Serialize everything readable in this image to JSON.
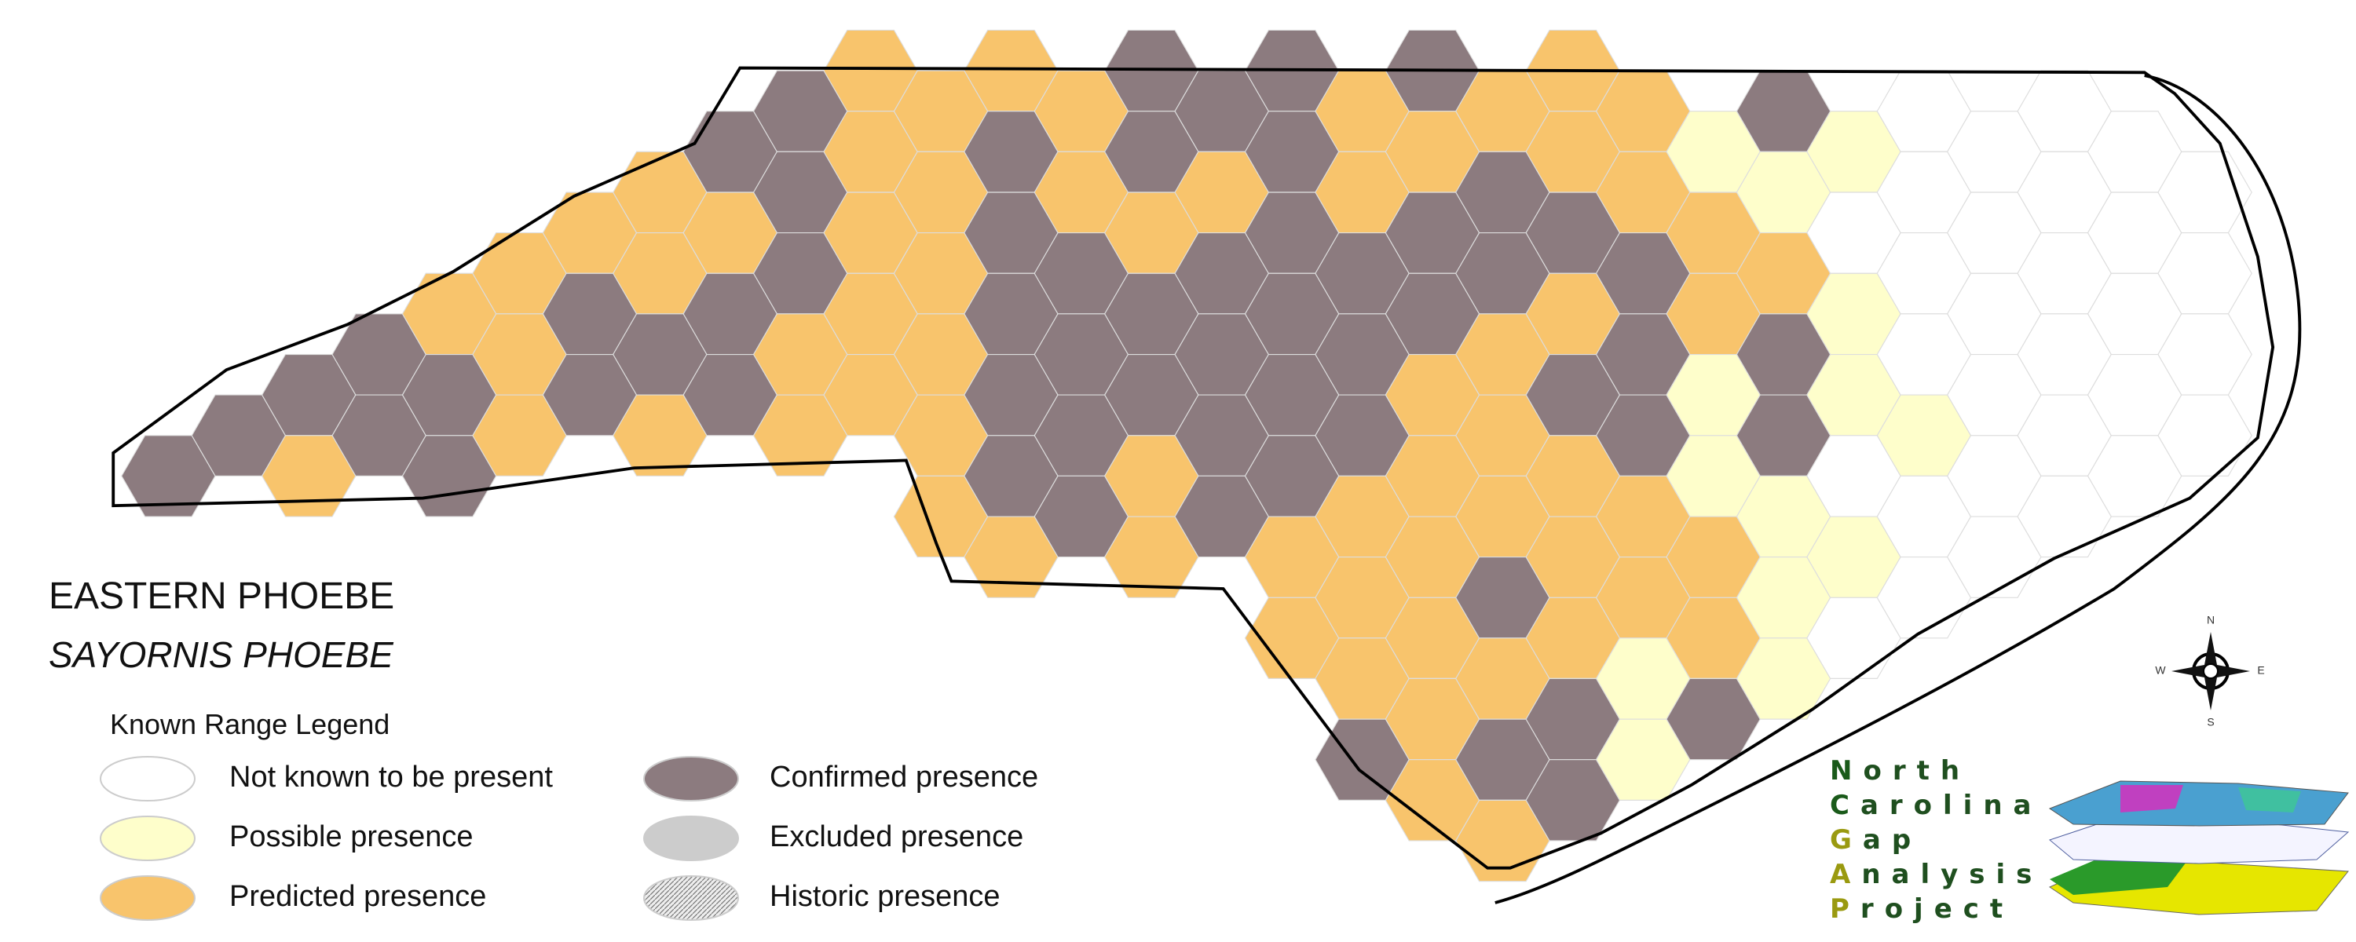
{
  "map": {
    "title": "EASTERN PHOEBE",
    "subtitle": "SAYORNIS PHOEBE"
  },
  "legend": {
    "title": "Known Range Legend",
    "items": [
      {
        "label": "Not known to be present"
      },
      {
        "label": "Possible presence"
      },
      {
        "label": "Predicted presence"
      },
      {
        "label": "Confirmed presence"
      },
      {
        "label": "Excluded presence"
      },
      {
        "label": "Historic presence"
      }
    ]
  },
  "compass": {
    "n": "N",
    "s": "S",
    "e": "E",
    "w": "W"
  },
  "logo": {
    "lines": [
      "North",
      "Carolina",
      "Gap",
      "Analysis",
      "Project"
    ]
  }
}
